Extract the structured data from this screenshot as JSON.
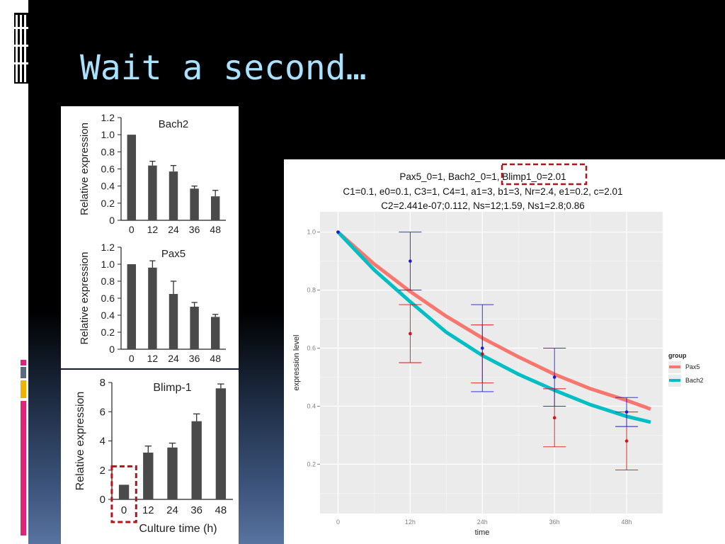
{
  "slide": {
    "title": "Wait a second…",
    "colors": {
      "title": "#a9e2ff",
      "accent_pink": "#e0237a",
      "accent_yellow": "#f0b400",
      "accent_slate": "#5a6a80"
    }
  },
  "chart_data": [
    {
      "type": "bar",
      "title": "Bach2",
      "ylabel": "Relative expression",
      "xlabel": "",
      "categories": [
        "0",
        "12",
        "24",
        "36",
        "48"
      ],
      "values": [
        1.0,
        0.64,
        0.57,
        0.37,
        0.28
      ],
      "errors": [
        0,
        0.05,
        0.07,
        0.03,
        0.07
      ],
      "ylim": [
        0,
        1.2
      ],
      "yticks": [
        "0",
        "0.2",
        "0.4",
        "0.6",
        "0.8",
        "1.0",
        "1.2"
      ],
      "color": "#4a4a4a"
    },
    {
      "type": "bar",
      "title": "Pax5",
      "ylabel": "Relative expression",
      "xlabel": "",
      "categories": [
        "0",
        "12",
        "24",
        "36",
        "48"
      ],
      "values": [
        1.0,
        0.96,
        0.65,
        0.5,
        0.38
      ],
      "errors": [
        0,
        0.08,
        0.15,
        0.05,
        0.03
      ],
      "ylim": [
        0,
        1.2
      ],
      "yticks": [
        "0",
        "0.2",
        "0.4",
        "0.6",
        "0.8",
        "1.0",
        "1.2"
      ],
      "color": "#4a4a4a"
    },
    {
      "type": "bar",
      "title": "Blimp-1",
      "ylabel": "Relative expression",
      "xlabel": "Culture time (h)",
      "categories": [
        "0",
        "12",
        "24",
        "36",
        "48"
      ],
      "values": [
        1.0,
        3.2,
        3.55,
        5.35,
        7.6
      ],
      "errors": [
        0,
        0.45,
        0.3,
        0.5,
        0.3
      ],
      "ylim": [
        0,
        8
      ],
      "yticks": [
        "0",
        "2",
        "4",
        "6",
        "8"
      ],
      "color": "#4a4a4a",
      "highlight_category": "0"
    },
    {
      "type": "line",
      "title_lines": [
        "Pax5_0=1, Bach2_0=1, Blimp1_0=2.01",
        "C1=0.1, e0=0.1, C3=1, C4=1, a1=3, b1=3, Nr=2.4, e1=0.2, c=2.01",
        "C2=2.441e-07;0.112, Ns=12;1.59, Ns1=2.8;0.86"
      ],
      "highlight_text": "Blimp1_0=2.01",
      "xlabel": "time",
      "ylabel": "expression level",
      "x_tick_values": [
        0,
        12,
        24,
        36,
        48
      ],
      "x_tick_labels": [
        "0",
        "12h",
        "24h",
        "36h",
        "48h"
      ],
      "xlim": [
        -3,
        54
      ],
      "ylim": [
        0.03,
        1.07
      ],
      "y_tick_values": [
        0.2,
        0.4,
        0.6,
        0.8,
        1.0
      ],
      "y_tick_labels": [
        "0.2",
        "0.4",
        "0.6",
        "0.8",
        "1.0"
      ],
      "grid": true,
      "legend": {
        "title": "group",
        "position": "right"
      },
      "series": [
        {
          "name": "Pax5",
          "color": "#f8766d",
          "curve_x": [
            0,
            6,
            12,
            18,
            24,
            30,
            36,
            42,
            48,
            52
          ],
          "curve_y": [
            1.0,
            0.89,
            0.795,
            0.71,
            0.635,
            0.57,
            0.51,
            0.46,
            0.42,
            0.39
          ],
          "points": [
            {
              "x": 0,
              "y": 1.0,
              "lo": 1.0,
              "hi": 1.0
            },
            {
              "x": 12,
              "y": 0.65,
              "lo": 0.55,
              "hi": 0.75
            },
            {
              "x": 24,
              "y": 0.58,
              "lo": 0.48,
              "hi": 0.68
            },
            {
              "x": 36,
              "y": 0.36,
              "lo": 0.26,
              "hi": 0.46
            },
            {
              "x": 48,
              "y": 0.28,
              "lo": 0.18,
              "hi": 0.38
            }
          ]
        },
        {
          "name": "Bach2",
          "color": "#00bfc4",
          "curve_x": [
            0,
            6,
            12,
            18,
            24,
            30,
            36,
            42,
            48,
            52
          ],
          "curve_y": [
            1.0,
            0.87,
            0.76,
            0.655,
            0.575,
            0.51,
            0.455,
            0.405,
            0.365,
            0.345
          ],
          "points": [
            {
              "x": 0,
              "y": 1.0,
              "lo": 1.0,
              "hi": 1.0
            },
            {
              "x": 12,
              "y": 0.9,
              "lo": 0.8,
              "hi": 1.0
            },
            {
              "x": 24,
              "y": 0.6,
              "lo": 0.45,
              "hi": 0.75
            },
            {
              "x": 36,
              "y": 0.5,
              "lo": 0.4,
              "hi": 0.6
            },
            {
              "x": 48,
              "y": 0.38,
              "lo": 0.33,
              "hi": 0.43
            }
          ]
        }
      ],
      "point_colors": {
        "Pax5": "#dd1111",
        "Bach2": "#1a1add"
      }
    }
  ]
}
